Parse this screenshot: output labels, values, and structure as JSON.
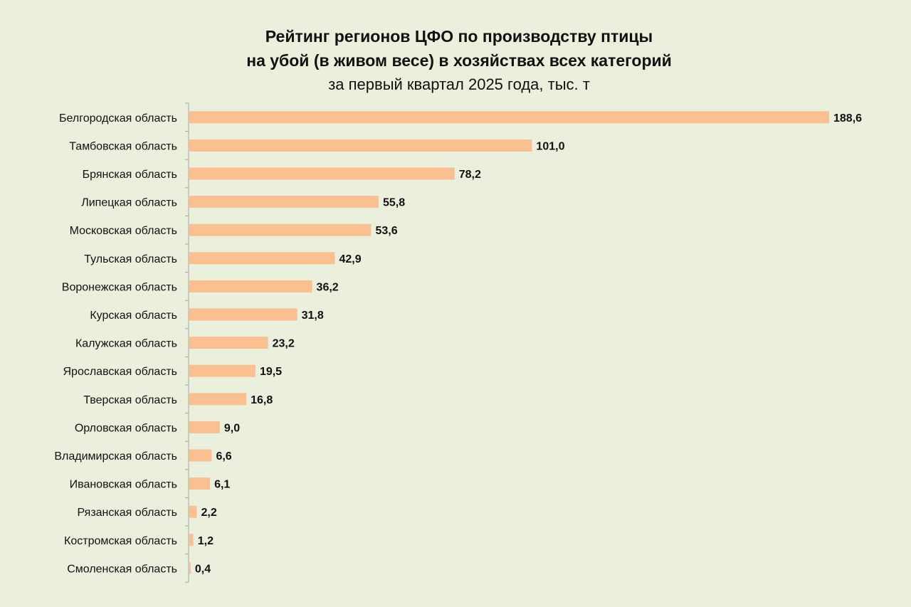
{
  "chart_data": {
    "type": "bar",
    "orientation": "horizontal",
    "title": "Рейтинг регионов ЦФО по производству птицы",
    "title_line2": "на убой (в живом весе) в хозяйствах всех категорий",
    "subtitle": "за первый квартал 2025 года, тыс. т",
    "categories": [
      "Белгородская область",
      "Тамбовская область",
      "Брянская область",
      "Липецкая область",
      "Московская область",
      "Тульская область",
      "Воронежская область",
      "Курская область",
      "Калужская область",
      "Ярославская область",
      "Тверская область",
      "Орловская область",
      "Владимирская область",
      "Ивановская область",
      "Рязанская область",
      "Костромская область",
      "Смоленская область"
    ],
    "values": [
      188.6,
      101.0,
      78.2,
      55.8,
      53.6,
      42.9,
      36.2,
      31.8,
      23.2,
      19.5,
      16.8,
      9.0,
      6.6,
      6.1,
      2.2,
      1.2,
      0.4
    ],
    "value_labels": [
      "188,6",
      "101,0",
      "78,2",
      "55,8",
      "53,6",
      "42,9",
      "36,2",
      "31,8",
      "23,2",
      "19,5",
      "16,8",
      "9,0",
      "6,6",
      "6,1",
      "2,2",
      "1,2",
      "0,4"
    ],
    "xlim": [
      0,
      188.6
    ],
    "grid": false,
    "legend": "none",
    "colors": {
      "bar": "#fac090",
      "background": "#ebf0dd",
      "axis": "#a6a6a6"
    }
  }
}
